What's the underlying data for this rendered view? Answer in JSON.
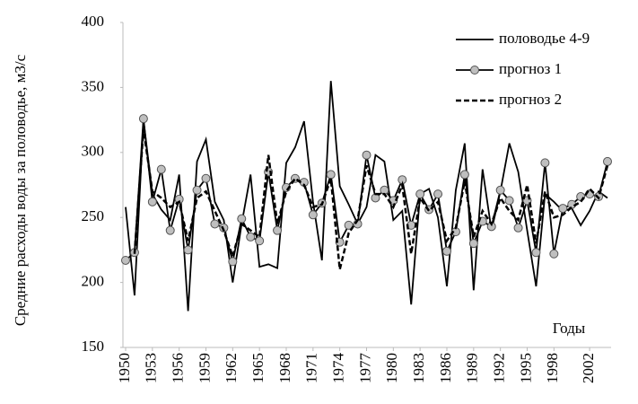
{
  "chart_data": {
    "type": "line",
    "y_label": "Средние расходы воды за половодье, м3/с",
    "annotation": "Годы",
    "x": [
      1950,
      1951,
      1952,
      1953,
      1954,
      1955,
      1956,
      1957,
      1958,
      1959,
      1960,
      1961,
      1962,
      1963,
      1964,
      1965,
      1966,
      1967,
      1968,
      1969,
      1970,
      1971,
      1972,
      1973,
      1974,
      1975,
      1976,
      1977,
      1978,
      1979,
      1980,
      1981,
      1982,
      1983,
      1984,
      1985,
      1986,
      1987,
      1988,
      1989,
      1990,
      1991,
      1992,
      1993,
      1994,
      1995,
      1996,
      1997,
      1998,
      1999,
      2000,
      2001,
      2002,
      2003,
      2004
    ],
    "xlim": [
      1950,
      2004
    ],
    "xticks": [
      1950,
      1953,
      1956,
      1959,
      1962,
      1965,
      1968,
      1971,
      1974,
      1977,
      1980,
      1983,
      1986,
      1989,
      1992,
      1995,
      1998,
      2002
    ],
    "ylim": [
      150,
      400
    ],
    "yticks": [
      150,
      200,
      250,
      300,
      350,
      400
    ],
    "grid": false,
    "legend": "upper right",
    "series": [
      {
        "name": "половодье 4-9",
        "color": "#000000",
        "style": "solid",
        "marker": false,
        "values": [
          258,
          190,
          325,
          268,
          256,
          248,
          283,
          178,
          293,
          310,
          262,
          248,
          200,
          245,
          283,
          212,
          214,
          211,
          292,
          304,
          324,
          262,
          217,
          355,
          274,
          260,
          245,
          258,
          298,
          293,
          248,
          255,
          183,
          268,
          272,
          250,
          197,
          271,
          307,
          194,
          287,
          240,
          270,
          307,
          285,
          240,
          197,
          268,
          262,
          255,
          257,
          244,
          255,
          270,
          265
        ]
      },
      {
        "name": "прогноз 1",
        "color": "#000000",
        "style": "solid",
        "marker": true,
        "values": [
          217,
          223,
          326,
          262,
          287,
          240,
          264,
          225,
          271,
          280,
          245,
          242,
          216,
          249,
          235,
          232,
          285,
          240,
          273,
          280,
          277,
          252,
          261,
          283,
          231,
          244,
          245,
          298,
          265,
          271,
          263,
          279,
          244,
          268,
          256,
          268,
          224,
          239,
          283,
          230,
          247,
          243,
          271,
          263,
          242,
          263,
          223,
          292,
          222,
          257,
          260,
          266,
          268,
          266,
          293
        ]
      },
      {
        "name": "прогноз 2",
        "color": "#000000",
        "style": "dashed",
        "marker": false,
        "values": [
          null,
          222,
          318,
          270,
          265,
          258,
          262,
          232,
          265,
          270,
          255,
          240,
          220,
          245,
          240,
          235,
          298,
          245,
          270,
          280,
          275,
          258,
          260,
          280,
          210,
          238,
          248,
          290,
          268,
          268,
          258,
          275,
          222,
          265,
          255,
          262,
          232,
          242,
          278,
          235,
          255,
          245,
          265,
          255,
          248,
          275,
          230,
          270,
          250,
          252,
          258,
          262,
          272,
          265,
          290
        ]
      }
    ]
  }
}
